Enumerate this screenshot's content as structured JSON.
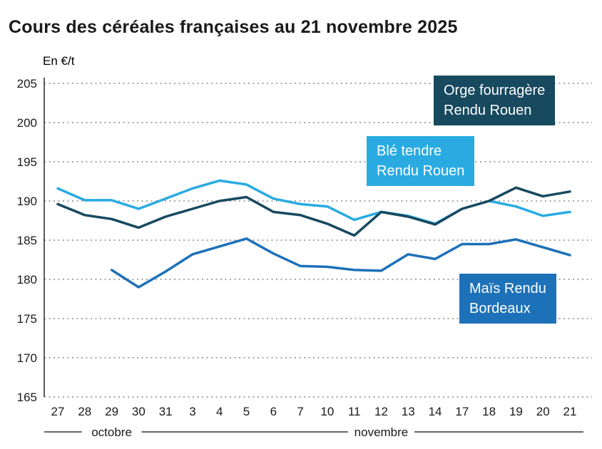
{
  "page": {
    "title": "Cours des céréales françaises au 21 novembre 2025",
    "unit_label": "En €/t"
  },
  "chart_data": {
    "type": "line",
    "title": "Cours des céréales françaises au 21 novembre 2025",
    "ylabel": "En €/t",
    "ylim": [
      165,
      205
    ],
    "ytick_step": 5,
    "grid": "horizontal-dotted",
    "legend_position": "inside-boxes",
    "x": [
      "27",
      "28",
      "29",
      "30",
      "31",
      "3",
      "4",
      "5",
      "6",
      "7",
      "10",
      "11",
      "12",
      "13",
      "14",
      "17",
      "18",
      "19",
      "20",
      "21"
    ],
    "month_groups": [
      {
        "label": "octobre",
        "from": 0,
        "to": 4
      },
      {
        "label": "novembre",
        "from": 5,
        "to": 19
      }
    ],
    "series": [
      {
        "id": "orge",
        "name": "Orge fourragère Rendu Rouen",
        "label_lines": [
          "Orge fourragère",
          "Rendu Rouen"
        ],
        "color": "#17495f",
        "values": [
          189.6,
          188.2,
          187.7,
          186.6,
          188.0,
          189.0,
          190.0,
          190.5,
          188.6,
          188.2,
          187.1,
          185.6,
          188.6,
          188.0,
          187.0,
          189.0,
          190.0,
          191.7,
          190.6,
          191.2
        ]
      },
      {
        "id": "ble",
        "name": "Blé tendre Rendu Rouen",
        "label_lines": [
          "Blé tendre",
          "Rendu Rouen"
        ],
        "color": "#29abe2",
        "values": [
          191.6,
          190.1,
          190.1,
          189.0,
          190.3,
          191.6,
          192.6,
          192.1,
          190.3,
          189.6,
          189.3,
          187.6,
          188.6,
          188.1,
          187.1,
          189.0,
          190.0,
          189.3,
          188.1,
          188.6
        ]
      },
      {
        "id": "mais",
        "name": "Maïs Rendu Bordeaux",
        "label_lines": [
          "Maïs Rendu",
          "Bordeaux"
        ],
        "color": "#1d71b8",
        "values": [
          null,
          null,
          181.2,
          179.0,
          181.0,
          183.2,
          184.2,
          185.2,
          183.3,
          181.7,
          181.6,
          181.2,
          181.1,
          183.2,
          182.6,
          184.5,
          184.5,
          185.1,
          184.1,
          183.1
        ]
      }
    ]
  }
}
